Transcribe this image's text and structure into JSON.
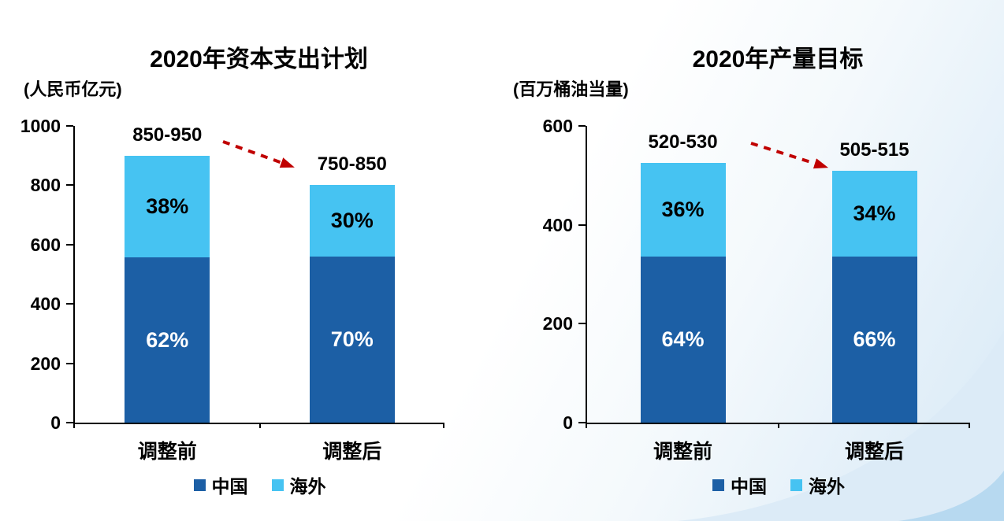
{
  "colors": {
    "china": "#1C5FA5",
    "overseas": "#46C3F2",
    "arrow": "#C00000",
    "axis": "#000000",
    "background_accent_light": "#DCEBF7",
    "background_accent_deep": "#B7D9F0"
  },
  "chart_data": [
    {
      "type": "bar",
      "stacked": true,
      "title": "2020年资本支出计划",
      "unit_label": "(人民币亿元)",
      "ylabel": "人民币亿元",
      "ylim": [
        0,
        1000
      ],
      "yticks": [
        0,
        200,
        400,
        600,
        800,
        1000
      ],
      "grid": false,
      "legend_position": "bottom",
      "categories": [
        "调整前",
        "调整后"
      ],
      "totals": [
        900,
        800
      ],
      "series": [
        {
          "name": "中国",
          "color": "#1C5FA5",
          "pct": [
            62,
            70
          ]
        },
        {
          "name": "海外",
          "color": "#46C3F2",
          "pct": [
            38,
            30
          ]
        }
      ],
      "bars": [
        {
          "category": "调整前",
          "range_label": "850-950",
          "china_label": "62%",
          "overseas_label": "38%"
        },
        {
          "category": "调整后",
          "range_label": "750-850",
          "china_label": "70%",
          "overseas_label": "30%"
        }
      ],
      "annotation": "dashed red arrow indicating decrease from 850-950 to 750-850"
    },
    {
      "type": "bar",
      "stacked": true,
      "title": "2020年产量目标",
      "unit_label": "(百万桶油当量)",
      "ylabel": "百万桶油当量",
      "ylim": [
        0,
        600
      ],
      "yticks": [
        0,
        200,
        400,
        600
      ],
      "grid": false,
      "legend_position": "bottom",
      "categories": [
        "调整前",
        "调整后"
      ],
      "totals": [
        525,
        510
      ],
      "series": [
        {
          "name": "中国",
          "color": "#1C5FA5",
          "pct": [
            64,
            66
          ]
        },
        {
          "name": "海外",
          "color": "#46C3F2",
          "pct": [
            36,
            34
          ]
        }
      ],
      "bars": [
        {
          "category": "调整前",
          "range_label": "520-530",
          "china_label": "64%",
          "overseas_label": "36%"
        },
        {
          "category": "调整后",
          "range_label": "505-515",
          "china_label": "66%",
          "overseas_label": "34%"
        }
      ],
      "annotation": "dashed red arrow indicating decrease from 520-530 to 505-515"
    }
  ]
}
